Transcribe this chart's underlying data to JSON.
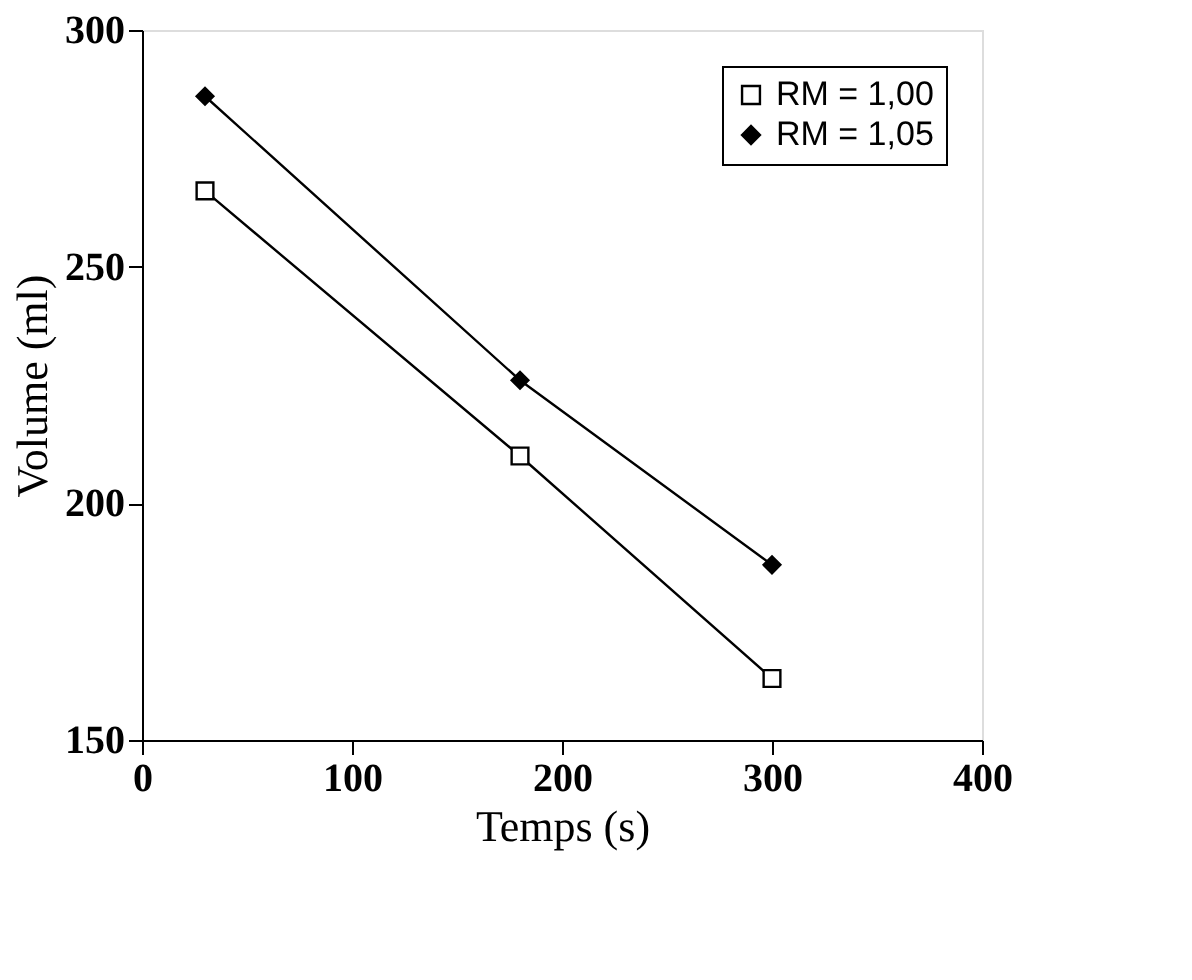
{
  "chart_data": {
    "type": "line",
    "xlabel": "Temps (s)",
    "ylabel": "Volume (ml)",
    "x": [
      30,
      180,
      300
    ],
    "series": [
      {
        "name": "RM = 1,00",
        "color": "#000000",
        "marker": "square",
        "values": [
          266,
          210,
          163
        ]
      },
      {
        "name": "RM = 1,05",
        "color": "#000000",
        "marker": "diamond",
        "values": [
          286,
          226,
          187
        ]
      }
    ],
    "xlim": [
      0,
      400
    ],
    "xticks": [
      0,
      100,
      200,
      300,
      400
    ],
    "ylim": [
      150,
      300
    ],
    "yticks": [
      150,
      200,
      250,
      300
    ],
    "grid": false,
    "legend": "top right",
    "line_style": "solid"
  }
}
